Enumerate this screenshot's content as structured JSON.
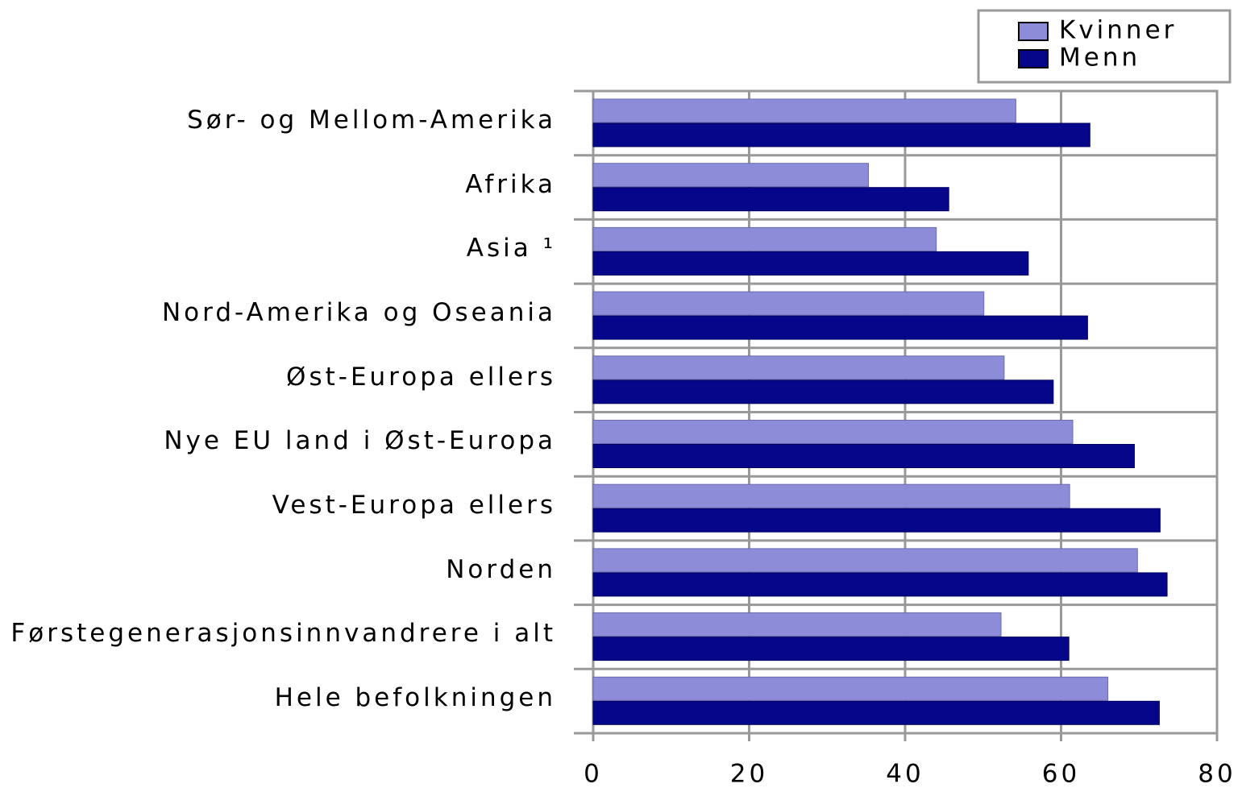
{
  "chart_data": {
    "type": "barh",
    "categories": [
      "Sør- og Mellom-Amerika",
      "Afrika",
      "Asia ¹",
      "Nord-Amerika og Oseania",
      "Øst-Europa ellers",
      "Nye EU land i Øst-Europa",
      "Vest-Europa ellers",
      "Norden",
      "Førstegenerasjonsinnvandrere i alt",
      "Hele befolkningen"
    ],
    "series": [
      {
        "name": "Kvinner",
        "color": "#8c8cd8",
        "values": [
          54.2,
          35.3,
          44.0,
          50.1,
          52.7,
          61.5,
          61.1,
          69.8,
          52.3,
          66.0
        ]
      },
      {
        "name": "Menn",
        "color": "#06068a",
        "values": [
          63.7,
          45.6,
          55.8,
          63.4,
          59.0,
          69.4,
          72.7,
          73.6,
          61.0,
          72.6
        ]
      }
    ],
    "xlim": [
      0,
      80
    ],
    "xticks": [
      0,
      20,
      40,
      60,
      80
    ],
    "grid": true,
    "legend": "top-right"
  }
}
